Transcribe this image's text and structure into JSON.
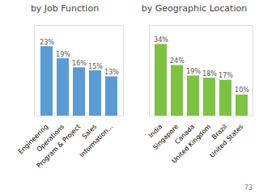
{
  "chart_data": [
    {
      "type": "bar",
      "title": "by Job Function",
      "categories": [
        "Engineering",
        "Operations",
        "Program & Project",
        "Sales",
        "Information..."
      ],
      "values": [
        23,
        19,
        16,
        15,
        13
      ],
      "value_labels": [
        "23%",
        "19%",
        "16%",
        "15%",
        "13%"
      ],
      "color": "#5B9BD5",
      "ylim": [
        0,
        30
      ],
      "data_labels": true,
      "tick_labels": "x"
    },
    {
      "type": "bar",
      "title": "by Geographic Location",
      "categories": [
        "India",
        "Singapore",
        "Canada",
        "United Kingdom",
        "Brazil",
        "United States"
      ],
      "values": [
        34,
        24,
        19,
        18,
        17,
        10
      ],
      "value_labels": [
        "34%",
        "24%",
        "19%",
        "18%",
        "17%",
        "10%"
      ],
      "color": "#7DC242",
      "ylim": [
        0,
        43
      ],
      "data_labels": true,
      "tick_labels": "x",
      "annotations": [
        "73"
      ]
    }
  ]
}
